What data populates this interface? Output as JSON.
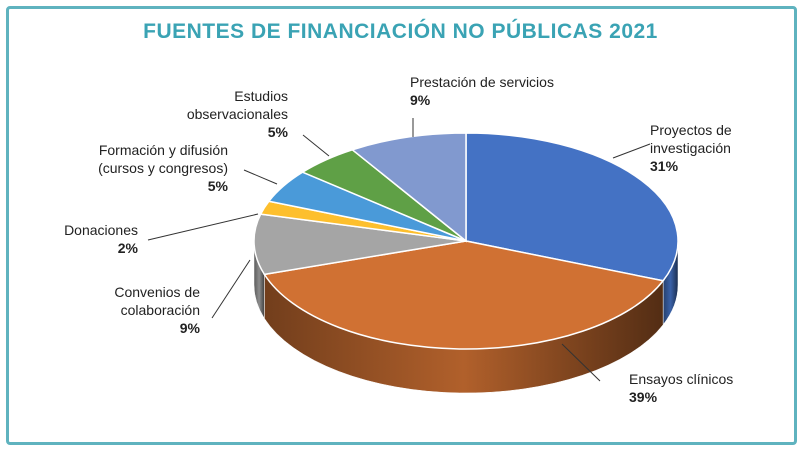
{
  "chart_data": {
    "type": "pie",
    "title": "FUENTES DE FINANCIACIÓN NO PÚBLICAS 2021",
    "slices": [
      {
        "name": "Proyectos de investigación",
        "label_lines": [
          "Proyectos de",
          "investigación"
        ],
        "value": 31,
        "value_label": "31%",
        "color": "#4472c4"
      },
      {
        "name": "Ensayos clínicos",
        "label_lines": [
          "Ensayos clínicos"
        ],
        "value": 39,
        "value_label": "39%",
        "color": "#d07133"
      },
      {
        "name": "Convenios de colaboración",
        "label_lines": [
          "Convenios de",
          "colaboración"
        ],
        "value": 9,
        "value_label": "9%",
        "color": "#a5a5a5"
      },
      {
        "name": "Donaciones",
        "label_lines": [
          "Donaciones"
        ],
        "value": 2,
        "value_label": "2%",
        "color": "#fdbf2d"
      },
      {
        "name": "Formación y difusión (cursos y congresos)",
        "label_lines": [
          "Formación y difusión",
          "(cursos y congresos)"
        ],
        "value": 5,
        "value_label": "5%",
        "color": "#4a9ad9"
      },
      {
        "name": "Estudios observacionales",
        "label_lines": [
          "Estudios",
          "observacionales"
        ],
        "value": 5,
        "value_label": "5%",
        "color": "#5fa046"
      },
      {
        "name": "Prestación de servicios",
        "label_lines": [
          "Prestación de servicios"
        ],
        "value": 9,
        "value_label": "9%",
        "color": "#8199cf"
      }
    ],
    "style": "3d",
    "legend": "none"
  }
}
